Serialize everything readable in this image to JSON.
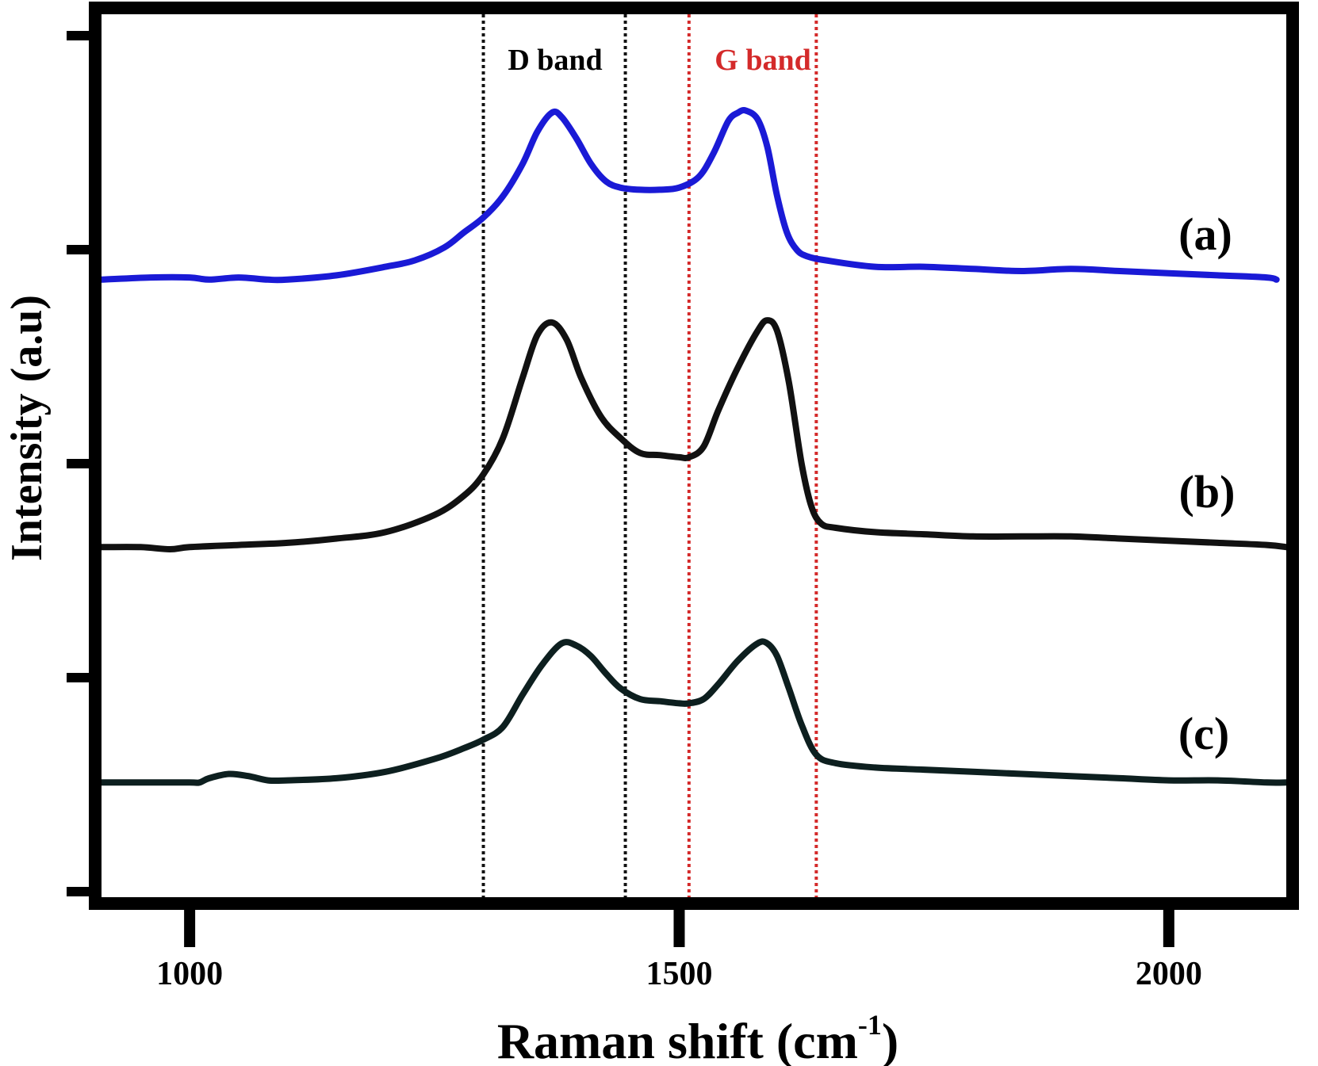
{
  "chart_data": {
    "type": "line",
    "xlabel": "Raman shift (cm",
    "xlabel_sup": "-1",
    "xlabel_close": ")",
    "ylabel": "Intensity (a.u)",
    "xlim": [
      910,
      2120
    ],
    "ylim": [
      0,
      4
    ],
    "x_ticks": [
      1000,
      1500,
      2000
    ],
    "y_ticks": [
      0,
      1,
      2,
      3,
      4
    ],
    "grid": false,
    "bands": [
      {
        "name": "D band",
        "from": 1300,
        "to": 1445,
        "color": "#111111"
      },
      {
        "name": "G band",
        "from": 1510,
        "to": 1640,
        "color": "#d42a2a"
      }
    ],
    "series": [
      {
        "name": "(a)",
        "color": "#1a1ad6",
        "x": [
          910,
          960,
          1000,
          1020,
          1050,
          1080,
          1100,
          1150,
          1200,
          1230,
          1260,
          1280,
          1300,
          1320,
          1340,
          1355,
          1370,
          1380,
          1395,
          1410,
          1425,
          1440,
          1460,
          1480,
          1500,
          1520,
          1535,
          1550,
          1560,
          1568,
          1580,
          1590,
          1600,
          1610,
          1620,
          1630,
          1650,
          1700,
          1750,
          1800,
          1850,
          1900,
          1950,
          2000,
          2050,
          2100,
          2110
        ],
        "y": [
          2.86,
          2.87,
          2.87,
          2.86,
          2.87,
          2.86,
          2.86,
          2.88,
          2.92,
          2.95,
          3.01,
          3.08,
          3.15,
          3.25,
          3.4,
          3.55,
          3.64,
          3.62,
          3.52,
          3.4,
          3.32,
          3.29,
          3.28,
          3.28,
          3.29,
          3.34,
          3.45,
          3.6,
          3.64,
          3.65,
          3.61,
          3.48,
          3.25,
          3.08,
          3.0,
          2.97,
          2.95,
          2.92,
          2.92,
          2.91,
          2.9,
          2.91,
          2.9,
          2.89,
          2.88,
          2.87,
          2.86
        ]
      },
      {
        "name": "(b)",
        "color": "#111111",
        "x": [
          910,
          950,
          980,
          1000,
          1050,
          1100,
          1150,
          1200,
          1250,
          1280,
          1300,
          1320,
          1340,
          1355,
          1370,
          1385,
          1400,
          1420,
          1440,
          1460,
          1480,
          1500,
          1510,
          1525,
          1540,
          1560,
          1580,
          1590,
          1600,
          1612,
          1625,
          1635,
          1645,
          1660,
          1700,
          1750,
          1800,
          1850,
          1900,
          1950,
          2000,
          2050,
          2100,
          2120
        ],
        "y": [
          1.61,
          1.61,
          1.6,
          1.61,
          1.62,
          1.63,
          1.65,
          1.68,
          1.76,
          1.85,
          1.95,
          2.12,
          2.4,
          2.6,
          2.66,
          2.58,
          2.4,
          2.22,
          2.12,
          2.05,
          2.04,
          2.03,
          2.03,
          2.08,
          2.25,
          2.45,
          2.62,
          2.67,
          2.62,
          2.38,
          2.0,
          1.8,
          1.72,
          1.7,
          1.68,
          1.67,
          1.66,
          1.66,
          1.66,
          1.65,
          1.64,
          1.63,
          1.62,
          1.61
        ]
      },
      {
        "name": "(c)",
        "color": "#0d1f1f",
        "x": [
          910,
          950,
          1000,
          1010,
          1020,
          1040,
          1060,
          1080,
          1100,
          1150,
          1200,
          1250,
          1280,
          1300,
          1320,
          1340,
          1360,
          1380,
          1395,
          1410,
          1425,
          1440,
          1460,
          1480,
          1500,
          1510,
          1525,
          1540,
          1560,
          1580,
          1590,
          1600,
          1612,
          1625,
          1640,
          1660,
          1700,
          1750,
          1800,
          1850,
          1900,
          1950,
          2000,
          2050,
          2100,
          2120
        ],
        "y": [
          0.51,
          0.51,
          0.51,
          0.51,
          0.53,
          0.55,
          0.54,
          0.52,
          0.52,
          0.53,
          0.56,
          0.62,
          0.67,
          0.71,
          0.77,
          0.92,
          1.06,
          1.16,
          1.15,
          1.1,
          1.02,
          0.95,
          0.9,
          0.89,
          0.88,
          0.88,
          0.9,
          0.97,
          1.08,
          1.16,
          1.16,
          1.1,
          0.95,
          0.78,
          0.64,
          0.6,
          0.58,
          0.57,
          0.56,
          0.55,
          0.54,
          0.53,
          0.52,
          0.52,
          0.51,
          0.51
        ]
      }
    ]
  }
}
